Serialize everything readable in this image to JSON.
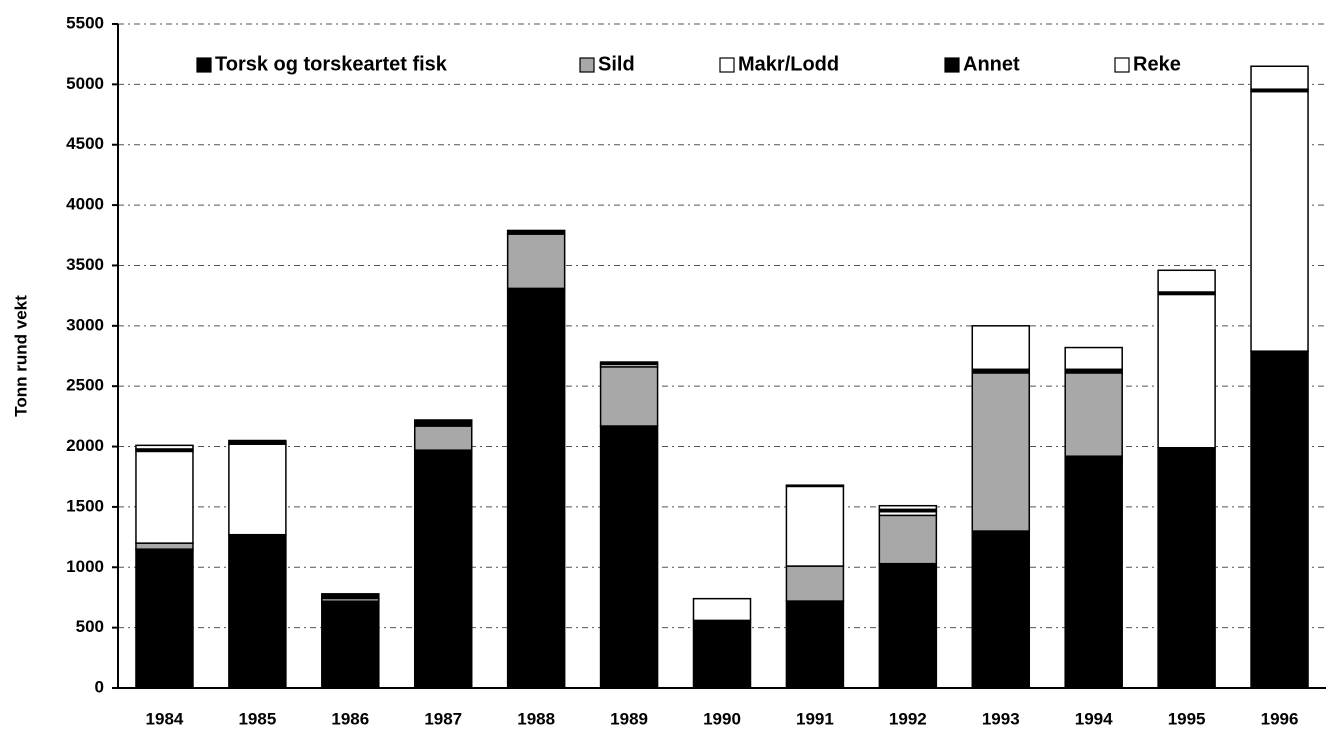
{
  "chart_data": {
    "type": "stacked_bar",
    "y_label": "Tonn rund vekt",
    "categories": [
      "1984",
      "1985",
      "1986",
      "1987",
      "1988",
      "1989",
      "1990",
      "1991",
      "1992",
      "1993",
      "1994",
      "1995",
      "1996"
    ],
    "series": [
      {
        "name": "Torsk og torskeartet fisk",
        "color": "#000000",
        "values": [
          1150,
          1270,
          720,
          1970,
          3310,
          2170,
          560,
          720,
          1030,
          1300,
          1920,
          1990,
          2790
        ]
      },
      {
        "name": "Sild",
        "color": "#a8a8a8",
        "values": [
          50,
          0,
          0,
          200,
          450,
          490,
          0,
          290,
          400,
          1310,
          690,
          0,
          0
        ]
      },
      {
        "name": "Makr/Lodd",
        "color": "#ffffff",
        "values": [
          760,
          750,
          20,
          0,
          0,
          20,
          180,
          660,
          30,
          0,
          0,
          1270,
          2150
        ]
      },
      {
        "name": "Annet",
        "color": "#000000",
        "values": [
          20,
          30,
          40,
          50,
          30,
          20,
          0,
          10,
          20,
          30,
          30,
          20,
          20
        ]
      },
      {
        "name": "Reke",
        "color": "#ffffff",
        "values": [
          30,
          0,
          0,
          0,
          0,
          0,
          0,
          0,
          30,
          360,
          180,
          180,
          190
        ]
      }
    ],
    "ylim": [
      0,
      5500
    ],
    "yticks": [
      0,
      500,
      1000,
      1500,
      2000,
      2500,
      3000,
      3500,
      4000,
      4500,
      5000,
      5500
    ],
    "grid": true
  }
}
